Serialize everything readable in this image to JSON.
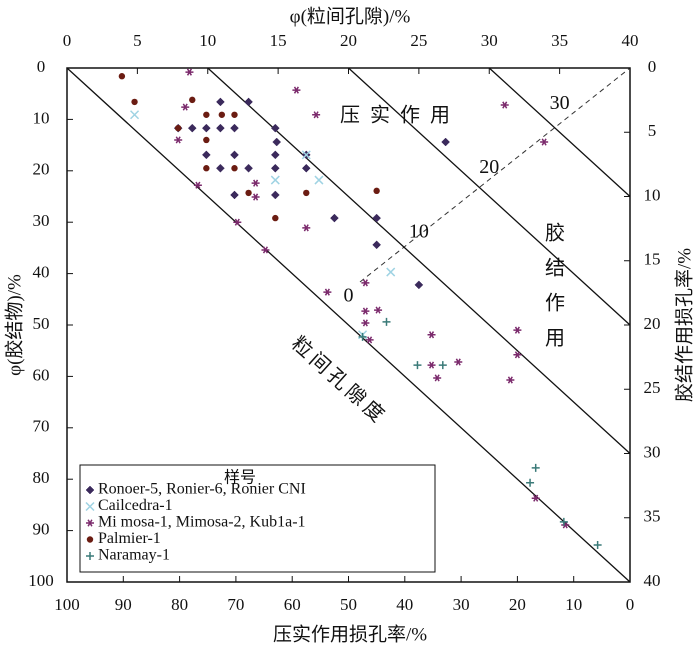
{
  "chart_data": {
    "type": "scatter",
    "x_title_top": "φ(粒间孔隙)/%",
    "y_title_left": "φ(胶结物)/%",
    "x_title_bottom": "压实作用损孔率/%",
    "y_title_right": "胶结作用损孔率/%",
    "xlim": [
      0,
      40
    ],
    "xticks": [
      0,
      5,
      10,
      15,
      20,
      25,
      30,
      35,
      40
    ],
    "ylim": [
      0,
      100
    ],
    "yticks": [
      0,
      10,
      20,
      30,
      40,
      50,
      60,
      70,
      80,
      90,
      100
    ],
    "y_inverted": true,
    "x2lim": [
      100,
      0
    ],
    "x2ticks": [
      100,
      90,
      80,
      70,
      60,
      50,
      40,
      30,
      20,
      10,
      0
    ],
    "y2lim": [
      0,
      40
    ],
    "y2ticks": [
      0,
      5,
      10,
      15,
      20,
      25,
      30,
      35,
      40
    ],
    "porosity_lines": [
      0,
      10,
      20,
      30
    ],
    "annotations": {
      "compaction": "压实作用",
      "cementation": [
        "胶",
        "结",
        "作",
        "用"
      ],
      "porosity": "粒间孔隙度"
    },
    "legend_title": "样号",
    "series": [
      {
        "name": "Ronoer-5, Ronier-6, Ronier CNI",
        "marker": "diamond",
        "color": "#3b2a5c",
        "x": [
          10.9,
          12.9,
          8.9,
          9.9,
          10.9,
          7.9,
          11.9,
          14.8,
          14.9,
          14.8,
          17.0,
          11.9,
          9.9,
          10.9,
          12.9,
          14.8,
          17.0,
          11.9,
          14.8,
          19.0,
          22.0,
          22.0,
          25.0,
          26.9
        ],
        "values": [
          6.6,
          6.6,
          11.7,
          11.7,
          11.7,
          11.7,
          11.7,
          11.7,
          14.4,
          16.9,
          16.9,
          16.9,
          16.9,
          19.5,
          19.5,
          19.5,
          19.5,
          24.7,
          24.7,
          29.2,
          29.2,
          34.4,
          42.2,
          14.4
        ]
      },
      {
        "name": "Cailcedra-1",
        "marker": "x",
        "color": "#9fd3e3",
        "x": [
          4.8,
          17.0,
          17.9,
          14.8,
          23.0,
          21.0
        ],
        "values": [
          9.1,
          16.9,
          21.8,
          21.8,
          39.7,
          51.9
        ]
      },
      {
        "name": "Mi mosa-1, Mimosa-2, Kub1a-1",
        "marker": "asterisk",
        "color": "#7b2a6c",
        "x": [
          8.7,
          16.3,
          17.7,
          7.9,
          31.1,
          33.9,
          8.4,
          9.3,
          13.4,
          13.4,
          12.1,
          17.0,
          14.1,
          18.5,
          21.2,
          21.2,
          22.1,
          21.2,
          21.5,
          25.9,
          25.9,
          27.8,
          26.3,
          32.0,
          32.0,
          31.5,
          35.4,
          33.3
        ],
        "values": [
          0.8,
          4.3,
          9.1,
          14.0,
          7.2,
          14.4,
          7.6,
          22.8,
          22.4,
          25.1,
          30.0,
          31.1,
          35.4,
          43.6,
          41.8,
          47.3,
          47.1,
          49.6,
          52.9,
          51.9,
          57.8,
          57.2,
          60.3,
          51.0,
          55.8,
          60.7,
          88.9,
          83.7
        ]
      },
      {
        "name": "Palmier-1",
        "marker": "circle",
        "color": "#6b1c12",
        "x": [
          3.9,
          4.8,
          8.9,
          11.0,
          11.9,
          9.9,
          7.9,
          9.9,
          9.9,
          11.9,
          12.9,
          17.0,
          22.0,
          14.8
        ],
        "values": [
          1.6,
          6.6,
          6.2,
          9.1,
          9.1,
          9.1,
          11.7,
          14.0,
          19.5,
          19.5,
          24.3,
          24.3,
          23.9,
          29.2
        ]
      },
      {
        "name": "Naramay-1",
        "marker": "plus",
        "color": "#3a7a78",
        "x": [
          21.0,
          22.7,
          24.9,
          26.7,
          33.3,
          32.9,
          35.3,
          37.7
        ],
        "values": [
          52.3,
          49.4,
          57.8,
          57.8,
          77.8,
          80.7,
          88.3,
          92.8
        ]
      }
    ]
  }
}
